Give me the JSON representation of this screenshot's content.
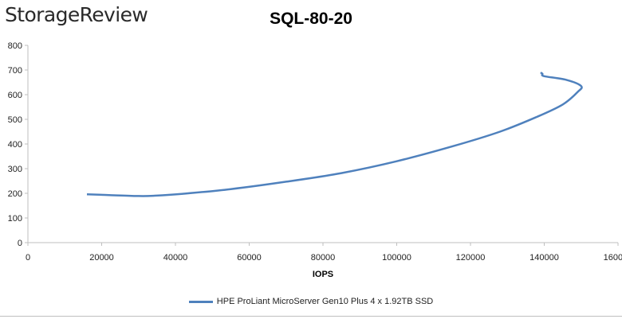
{
  "header": {
    "logo_text": "StorageReview"
  },
  "chart_data": {
    "type": "line",
    "title": "SQL-80-20",
    "xlabel": "IOPS",
    "ylabel": "",
    "xlim": [
      0,
      160000
    ],
    "ylim": [
      0,
      800
    ],
    "x_ticks": [
      "0",
      "20000",
      "40000",
      "60000",
      "80000",
      "100000",
      "120000",
      "140000",
      "160000"
    ],
    "y_ticks": [
      "0",
      "100",
      "200",
      "300",
      "400",
      "500",
      "600",
      "700",
      "800"
    ],
    "grid": false,
    "legend_position": "bottom",
    "series": [
      {
        "name": "HPE ProLiant MicroServer Gen10 Plus 4 x 1.92TB SSD",
        "color": "#4f81bd",
        "x": [
          16000,
          22000,
          30000,
          34000,
          42000,
          55000,
          70000,
          85000,
          100000,
          115000,
          128000,
          138000,
          145000,
          149000,
          150000,
          146000,
          140000,
          139500,
          139000
        ],
        "y": [
          196,
          193,
          189,
          190,
          198,
          217,
          247,
          282,
          330,
          390,
          450,
          510,
          560,
          610,
          635,
          660,
          675,
          685,
          690
        ]
      }
    ]
  }
}
